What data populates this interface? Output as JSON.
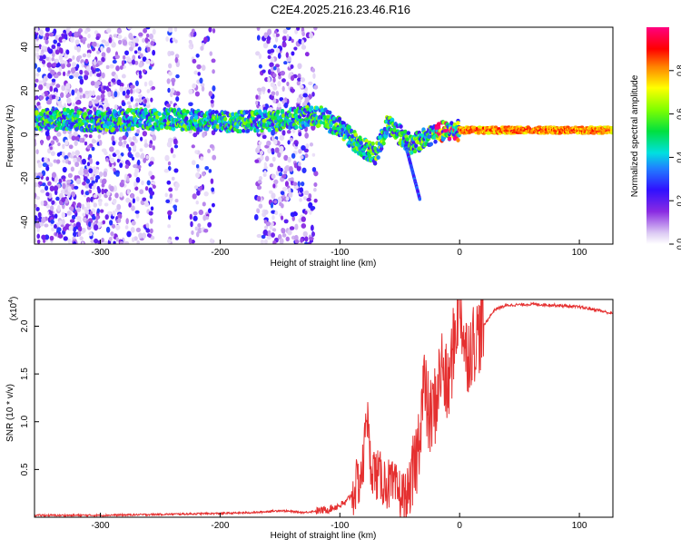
{
  "title": "C2E4.2025.216.23.46.R16",
  "chart_data": [
    {
      "type": "heatmap",
      "xlabel": "Height of straight line (km)",
      "ylabel": "Frequency (Hz)",
      "xlim": [
        -355,
        128
      ],
      "ylim": [
        -50,
        49
      ],
      "x_ticks": [
        -300,
        -200,
        -100,
        0,
        100
      ],
      "x_tick_labels": [
        "-300",
        "-200",
        "-100",
        "0",
        "100"
      ],
      "y_ticks": [
        -40,
        -20,
        0,
        20,
        40
      ],
      "y_tick_labels": [
        "-40",
        "-20",
        "0",
        "20",
        "40"
      ],
      "grid": false,
      "colorbar": {
        "label": "Normalized spectral amplitude",
        "range": [
          0,
          1
        ],
        "ticks": [
          0.0,
          0.2,
          0.4,
          0.6,
          0.8
        ],
        "tick_labels": [
          "0.0",
          "0.2",
          "0.4",
          "0.6",
          "0.8"
        ],
        "colormap": "rainbow (white → violet → blue → cyan → green → yellow → red → magenta)"
      },
      "ridge": {
        "x": [
          -355,
          -330,
          -300,
          -270,
          -240,
          -200,
          -160,
          -130,
          -115,
          -100,
          -90,
          -80,
          -70,
          -60,
          -50,
          -40,
          -30,
          -20,
          0,
          30,
          60,
          100,
          128
        ],
        "y": [
          7,
          7,
          6,
          7,
          7,
          6,
          6,
          8,
          8,
          3,
          -2,
          -6,
          -9,
          5,
          0,
          -5,
          -2,
          1,
          2,
          2,
          2,
          2,
          2
        ]
      }
    },
    {
      "type": "line",
      "xlabel": "Height of straight line (km)",
      "ylabel": "SNR (10 * v/v)",
      "y_scale_label": "(x10",
      "y_scale_exponent": "4",
      "xlim": [
        -355,
        128
      ],
      "ylim": [
        0,
        2.28
      ],
      "x_ticks": [
        -300,
        -200,
        -100,
        0,
        100
      ],
      "x_tick_labels": [
        "-300",
        "-200",
        "-100",
        "0",
        "100"
      ],
      "y_ticks": [
        0.5,
        1.0,
        1.5,
        2.0
      ],
      "y_tick_labels": [
        "0.5",
        "1.0",
        "1.5",
        "2.0"
      ],
      "grid": false,
      "series": [
        {
          "color": "#e53030",
          "x": [
            -355,
            -300,
            -250,
            -200,
            -170,
            -150,
            -130,
            -110,
            -95,
            -85,
            -80,
            -78,
            -75,
            -70,
            -60,
            -50,
            -45,
            -40,
            -35,
            -30,
            -25,
            -20,
            -15,
            -10,
            -5,
            0,
            5,
            10,
            15,
            20,
            25,
            30,
            40,
            60,
            80,
            100,
            115,
            128
          ],
          "y": [
            0.02,
            0.02,
            0.03,
            0.04,
            0.05,
            0.07,
            0.05,
            0.08,
            0.15,
            0.35,
            0.55,
            1.25,
            0.6,
            0.45,
            0.35,
            0.25,
            0.2,
            0.35,
            0.7,
            1.4,
            1.0,
            1.2,
            1.6,
            1.3,
            1.8,
            2.3,
            1.7,
            1.8,
            1.9,
            2.0,
            2.1,
            2.18,
            2.22,
            2.23,
            2.22,
            2.2,
            2.17,
            2.13
          ]
        }
      ]
    }
  ]
}
